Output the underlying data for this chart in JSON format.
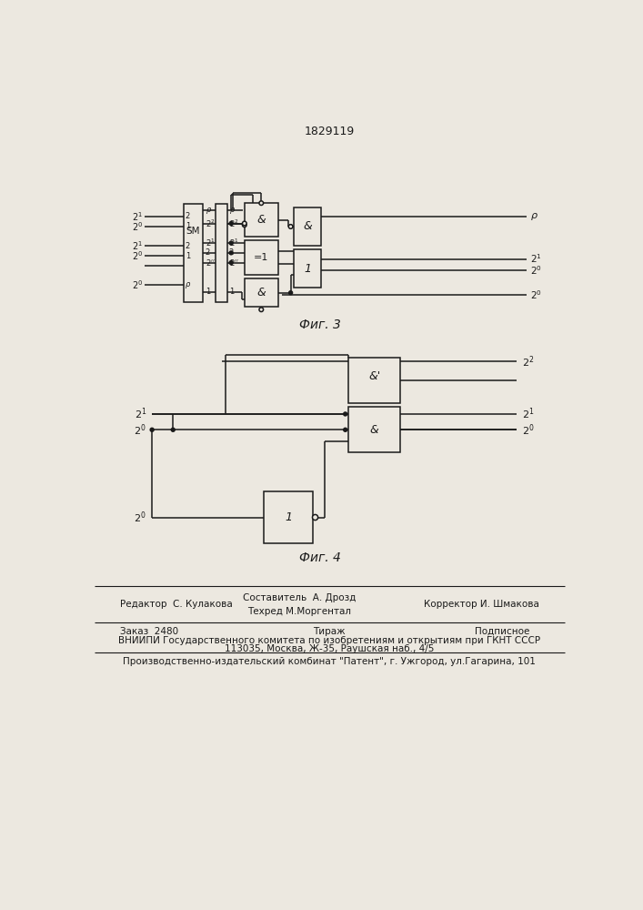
{
  "title": "1829119",
  "fig3_caption": "Фиг. 3",
  "fig4_caption": "Фиг. 4",
  "bg_color": "#ece8e0",
  "line_color": "#1a1a1a",
  "text_color": "#1a1a1a"
}
